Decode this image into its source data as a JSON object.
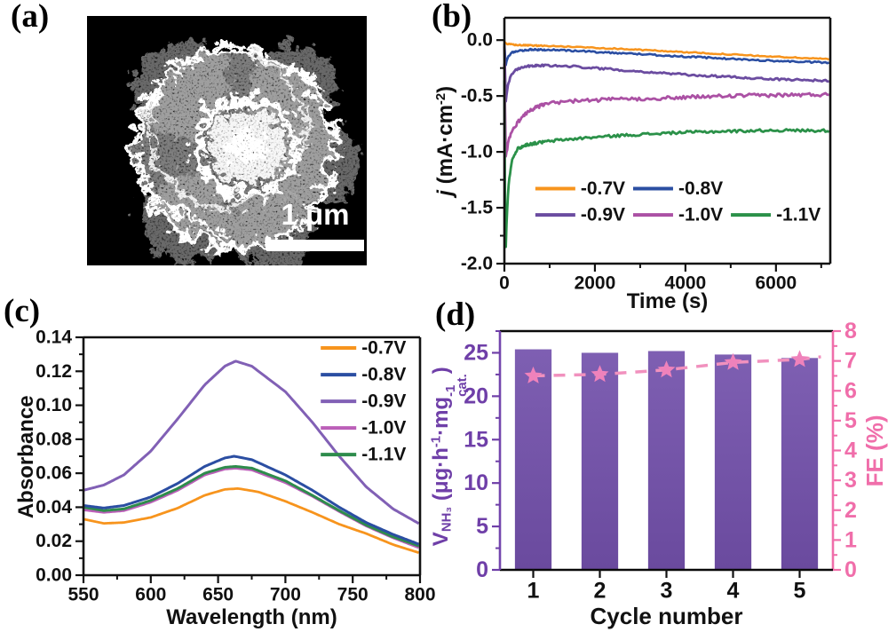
{
  "panels": {
    "a": "(a)",
    "b": "(b)",
    "c": "(c)",
    "d": "(d)"
  },
  "panel_a": {
    "scale_label": "1 μm"
  },
  "chart_data": [
    {
      "id": "b",
      "type": "line",
      "xlabel": "Time (s)",
      "ylabel_parts": {
        "italic": "j",
        "rest": " (mA·cm",
        "sup": "-2",
        "close": ")"
      },
      "xlim": [
        0,
        7200
      ],
      "ylim": [
        -2.0,
        0.2
      ],
      "xticks": {
        "major": [
          0,
          2000,
          4000,
          6000
        ],
        "labels": [
          "0",
          "2000",
          "4000",
          "6000"
        ],
        "minor_step": 1000
      },
      "yticks": {
        "major": [
          0,
          -0.5,
          -1.0,
          -1.5,
          -2.0
        ],
        "labels": [
          "0.0",
          "-0.5",
          "-1.0",
          "-1.5",
          "-2.0"
        ],
        "minor_step": 0.25
      },
      "legend_rows": [
        [
          "-0.7V",
          "-0.8V"
        ],
        [
          "-0.9V",
          "-1.0V",
          "-1.1V"
        ]
      ],
      "series": [
        {
          "name": "-0.7V",
          "color": "#f7941d",
          "noise": 0.005,
          "width": 2.5,
          "points": [
            [
              0,
              -0.02
            ],
            [
              50,
              -0.035
            ],
            [
              300,
              -0.045
            ],
            [
              800,
              -0.05
            ],
            [
              1500,
              -0.06
            ],
            [
              2000,
              -0.068
            ],
            [
              2500,
              -0.077
            ],
            [
              3000,
              -0.087
            ],
            [
              3500,
              -0.097
            ],
            [
              4000,
              -0.108
            ],
            [
              4500,
              -0.118
            ],
            [
              5000,
              -0.128
            ],
            [
              5500,
              -0.139
            ],
            [
              6000,
              -0.149
            ],
            [
              6500,
              -0.158
            ],
            [
              7000,
              -0.167
            ],
            [
              7200,
              -0.17
            ]
          ]
        },
        {
          "name": "-0.8V",
          "color": "#2b4ea2",
          "noise": 0.007,
          "width": 2.6,
          "points": [
            [
              0,
              -0.03
            ],
            [
              30,
              -0.22
            ],
            [
              70,
              -0.16
            ],
            [
              150,
              -0.115
            ],
            [
              300,
              -0.095
            ],
            [
              600,
              -0.085
            ],
            [
              1000,
              -0.087
            ],
            [
              1500,
              -0.095
            ],
            [
              2000,
              -0.105
            ],
            [
              2500,
              -0.115
            ],
            [
              3000,
              -0.125
            ],
            [
              3500,
              -0.137
            ],
            [
              4000,
              -0.148
            ],
            [
              4500,
              -0.158
            ],
            [
              5000,
              -0.168
            ],
            [
              5500,
              -0.178
            ],
            [
              6000,
              -0.186
            ],
            [
              6500,
              -0.193
            ],
            [
              7000,
              -0.2
            ],
            [
              7200,
              -0.202
            ]
          ]
        },
        {
          "name": "-0.9V",
          "color": "#6b4ca0",
          "noise": 0.009,
          "width": 2.8,
          "points": [
            [
              0,
              -0.05
            ],
            [
              30,
              -0.55
            ],
            [
              80,
              -0.4
            ],
            [
              150,
              -0.31
            ],
            [
              250,
              -0.265
            ],
            [
              400,
              -0.24
            ],
            [
              600,
              -0.228
            ],
            [
              1000,
              -0.228
            ],
            [
              1500,
              -0.235
            ],
            [
              2000,
              -0.25
            ],
            [
              2500,
              -0.265
            ],
            [
              3000,
              -0.28
            ],
            [
              3500,
              -0.295
            ],
            [
              4000,
              -0.31
            ],
            [
              4500,
              -0.32
            ],
            [
              5000,
              -0.33
            ],
            [
              5500,
              -0.34
            ],
            [
              6000,
              -0.35
            ],
            [
              6500,
              -0.355
            ],
            [
              7000,
              -0.362
            ],
            [
              7200,
              -0.365
            ]
          ]
        },
        {
          "name": "-1.0V",
          "color": "#ab51a4",
          "noise": 0.016,
          "width": 2.8,
          "points": [
            [
              0,
              -0.2
            ],
            [
              30,
              -1.05
            ],
            [
              100,
              -0.88
            ],
            [
              250,
              -0.76
            ],
            [
              450,
              -0.66
            ],
            [
              700,
              -0.6
            ],
            [
              1000,
              -0.565
            ],
            [
              1500,
              -0.545
            ],
            [
              2500,
              -0.53
            ],
            [
              3500,
              -0.52
            ],
            [
              4500,
              -0.505
            ],
            [
              5500,
              -0.495
            ],
            [
              6500,
              -0.49
            ],
            [
              7200,
              -0.487
            ]
          ]
        },
        {
          "name": "-1.1V",
          "color": "#2b9149",
          "noise": 0.012,
          "width": 2.8,
          "points": [
            [
              0,
              -0.35
            ],
            [
              20,
              -2.0
            ],
            [
              50,
              -1.6
            ],
            [
              100,
              -1.25
            ],
            [
              180,
              -1.05
            ],
            [
              300,
              -0.97
            ],
            [
              500,
              -0.935
            ],
            [
              800,
              -0.915
            ],
            [
              1200,
              -0.895
            ],
            [
              1800,
              -0.875
            ],
            [
              2500,
              -0.855
            ],
            [
              3200,
              -0.84
            ],
            [
              4000,
              -0.825
            ],
            [
              5000,
              -0.815
            ],
            [
              6000,
              -0.807
            ],
            [
              7200,
              -0.81
            ]
          ]
        }
      ]
    },
    {
      "id": "c",
      "type": "line",
      "xlabel": "Wavelength (nm)",
      "ylabel": "Absorbance",
      "xlim": [
        550,
        800
      ],
      "ylim": [
        0,
        0.14
      ],
      "xticks": {
        "major": [
          550,
          600,
          650,
          700,
          750,
          800
        ],
        "labels": [
          "550",
          "600",
          "650",
          "700",
          "750",
          "800"
        ],
        "minor_step": 25
      },
      "yticks": {
        "major": [
          0,
          0.02,
          0.04,
          0.06,
          0.08,
          0.1,
          0.12,
          0.14
        ],
        "labels": [
          "0.00",
          "0.02",
          "0.04",
          "0.06",
          "0.08",
          "0.10",
          "0.12",
          "0.14"
        ],
        "minor_step": 0.01
      },
      "legend_rows": [
        [
          "-0.7V"
        ],
        [
          "-0.8V"
        ],
        [
          "-0.9V"
        ],
        [
          "-1.0V"
        ],
        [
          "-1.1V"
        ]
      ],
      "series": [
        {
          "name": "-0.7V",
          "color": "#f7941d",
          "noise": 0,
          "width": 2.8,
          "points": [
            [
              550,
              0.033
            ],
            [
              565,
              0.0305
            ],
            [
              580,
              0.031
            ],
            [
              600,
              0.034
            ],
            [
              620,
              0.0395
            ],
            [
              640,
              0.047
            ],
            [
              655,
              0.0505
            ],
            [
              665,
              0.051
            ],
            [
              680,
              0.049
            ],
            [
              700,
              0.0435
            ],
            [
              720,
              0.037
            ],
            [
              740,
              0.03
            ],
            [
              760,
              0.0245
            ],
            [
              780,
              0.018
            ],
            [
              800,
              0.013
            ]
          ]
        },
        {
          "name": "-1.0V",
          "color": "#bb5fb8",
          "noise": 0,
          "width": 3,
          "points": [
            [
              550,
              0.0385
            ],
            [
              565,
              0.037
            ],
            [
              580,
              0.038
            ],
            [
              600,
              0.043
            ],
            [
              620,
              0.05
            ],
            [
              640,
              0.059
            ],
            [
              655,
              0.0625
            ],
            [
              663,
              0.063
            ],
            [
              675,
              0.062
            ],
            [
              700,
              0.0545
            ],
            [
              720,
              0.0465
            ],
            [
              740,
              0.0375
            ],
            [
              760,
              0.029
            ],
            [
              780,
              0.022
            ],
            [
              800,
              0.016
            ]
          ]
        },
        {
          "name": "-1.1V",
          "color": "#2e8c4c",
          "noise": 0,
          "width": 3,
          "points": [
            [
              550,
              0.04
            ],
            [
              565,
              0.038
            ],
            [
              580,
              0.039
            ],
            [
              600,
              0.044
            ],
            [
              620,
              0.051
            ],
            [
              640,
              0.06
            ],
            [
              655,
              0.0635
            ],
            [
              663,
              0.064
            ],
            [
              675,
              0.063
            ],
            [
              700,
              0.0555
            ],
            [
              720,
              0.047
            ],
            [
              740,
              0.038
            ],
            [
              760,
              0.0295
            ],
            [
              780,
              0.0225
            ],
            [
              800,
              0.017
            ]
          ]
        },
        {
          "name": "-0.8V",
          "color": "#2b4ea2",
          "noise": 0,
          "width": 3,
          "points": [
            [
              550,
              0.041
            ],
            [
              565,
              0.0395
            ],
            [
              580,
              0.041
            ],
            [
              600,
              0.046
            ],
            [
              620,
              0.054
            ],
            [
              640,
              0.064
            ],
            [
              655,
              0.069
            ],
            [
              662,
              0.07
            ],
            [
              675,
              0.068
            ],
            [
              700,
              0.059
            ],
            [
              720,
              0.05
            ],
            [
              740,
              0.04
            ],
            [
              760,
              0.031
            ],
            [
              780,
              0.024
            ],
            [
              800,
              0.018
            ]
          ]
        },
        {
          "name": "-0.9V",
          "color": "#8160b5",
          "noise": 0,
          "width": 3,
          "points": [
            [
              550,
              0.05
            ],
            [
              565,
              0.053
            ],
            [
              580,
              0.059
            ],
            [
              600,
              0.073
            ],
            [
              620,
              0.092
            ],
            [
              640,
              0.112
            ],
            [
              655,
              0.123
            ],
            [
              663,
              0.126
            ],
            [
              675,
              0.123
            ],
            [
              700,
              0.108
            ],
            [
              720,
              0.09
            ],
            [
              740,
              0.07
            ],
            [
              760,
              0.052
            ],
            [
              780,
              0.039
            ],
            [
              800,
              0.03
            ]
          ]
        }
      ]
    },
    {
      "id": "d",
      "type": "bar-line",
      "xlabel": "Cycle number",
      "ylabel_parts": {
        "v": "V",
        "vsub": "NH₃",
        "rest": " (μg·h",
        "sup1": "-1",
        "mid": "·mg",
        "sup2": "-1",
        "sub2": "cat.",
        "close": ")"
      },
      "y2label": "FE (%)",
      "xlim": [
        0.5,
        5.5
      ],
      "ylim": [
        0,
        27.5
      ],
      "y2lim": [
        0,
        8
      ],
      "categories": [
        1,
        2,
        3,
        4,
        5
      ],
      "bar_values": [
        25.4,
        25.0,
        25.2,
        24.8,
        24.4
      ],
      "fe_values": [
        6.5,
        6.55,
        6.7,
        6.95,
        7.05
      ],
      "bar_colors": [
        "#7e5fb2",
        "#6a4a9e"
      ],
      "star_color": "#ef82bb",
      "dash_color": "#f191be",
      "xticks": {
        "major": [
          1,
          2,
          3,
          4,
          5
        ],
        "labels": [
          "1",
          "2",
          "3",
          "4",
          "5"
        ],
        "color": "#111111",
        "size": 25
      },
      "yticks": {
        "major": [
          0,
          5,
          10,
          15,
          20,
          25
        ],
        "labels": [
          "0",
          "5",
          "10",
          "15",
          "20",
          "25"
        ],
        "minor_step": 2.5,
        "color": "#6f3fa8",
        "size": 25
      },
      "y2ticks": {
        "major": [
          0,
          1,
          2,
          3,
          4,
          5,
          6,
          7,
          8
        ],
        "labels": [
          "0",
          "1",
          "2",
          "3",
          "4",
          "5",
          "6",
          "7",
          "8"
        ],
        "minor_step": 0.5,
        "color": "#f06eaa",
        "size": 25
      },
      "frame": {
        "top": "#0a0a0a",
        "bottom": "#0a0a0a",
        "left": "#7345ad",
        "right": "#f06eaa"
      }
    }
  ]
}
